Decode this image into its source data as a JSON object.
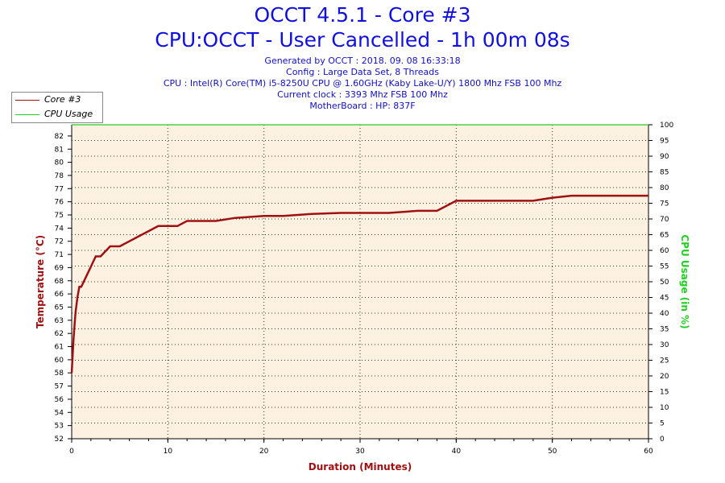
{
  "chart_data": {
    "type": "line",
    "title": "OCCT 4.5.1 - Core #3",
    "subtitle": "CPU:OCCT - User Cancelled - 1h 00m 08s",
    "info_lines": [
      "Generated by OCCT : 2018. 09. 08 16:33:18",
      "Config : Large Data Set, 8 Threads",
      "CPU : Intel(R) Core(TM) i5-8250U CPU @ 1.60GHz (Kaby Lake-U/Y) 1800 Mhz FSB 100 Mhz",
      "Current clock : 3393 Mhz FSB 100 Mhz",
      "MotherBoard : HP: 837F"
    ],
    "xlabel": "Duration (Minutes)",
    "ylabel": "Temperature (°C)",
    "y2label": "CPU Usage (in %)",
    "xlim": [
      0,
      60
    ],
    "ylim": [
      52,
      83
    ],
    "y2lim": [
      0,
      100
    ],
    "x_ticks": [
      "0",
      "10",
      "20",
      "30",
      "40",
      "50",
      "60"
    ],
    "y_ticks": [
      "52",
      "53",
      "54",
      "56",
      "57",
      "58",
      "60",
      "61",
      "62",
      "63",
      "65",
      "66",
      "68",
      "69",
      "71",
      "72",
      "74",
      "75",
      "76",
      "77",
      "78",
      "80",
      "81",
      "82"
    ],
    "y2_ticks": [
      "0",
      "5",
      "10",
      "15",
      "20",
      "25",
      "30",
      "35",
      "40",
      "45",
      "50",
      "55",
      "60",
      "65",
      "70",
      "75",
      "80",
      "85",
      "90",
      "95",
      "100"
    ],
    "grid": true,
    "legend_position": "top-left",
    "series": [
      {
        "name": "Core #3",
        "color": "#a01010",
        "x": [
          0,
          0.2,
          0.4,
          0.6,
          0.8,
          1,
          1.5,
          2,
          2.5,
          3,
          3.5,
          4,
          5,
          6,
          7,
          8,
          9,
          10,
          11,
          12,
          13,
          15,
          17,
          20,
          22,
          25,
          28,
          30,
          33,
          36,
          38,
          40,
          42,
          45,
          48,
          50,
          52,
          55,
          57,
          60
        ],
        "y": [
          58.5,
          62,
          64.5,
          66,
          67,
          67,
          68,
          69,
          70,
          70,
          70.5,
          71,
          71,
          71.5,
          72,
          72.5,
          73,
          73,
          73,
          73.5,
          73.5,
          73.5,
          73.8,
          74,
          74,
          74.2,
          74.3,
          74.3,
          74.3,
          74.5,
          74.5,
          75.5,
          75.5,
          75.5,
          75.5,
          75.8,
          76,
          76,
          76,
          76
        ]
      },
      {
        "name": "CPU Usage",
        "color": "#20d020",
        "x": [
          0,
          60
        ],
        "y": [
          100,
          100
        ]
      }
    ]
  },
  "legend": {
    "items": [
      {
        "label": "Core #3",
        "color": "#a01010"
      },
      {
        "label": "CPU Usage",
        "color": "#20d020"
      }
    ]
  }
}
